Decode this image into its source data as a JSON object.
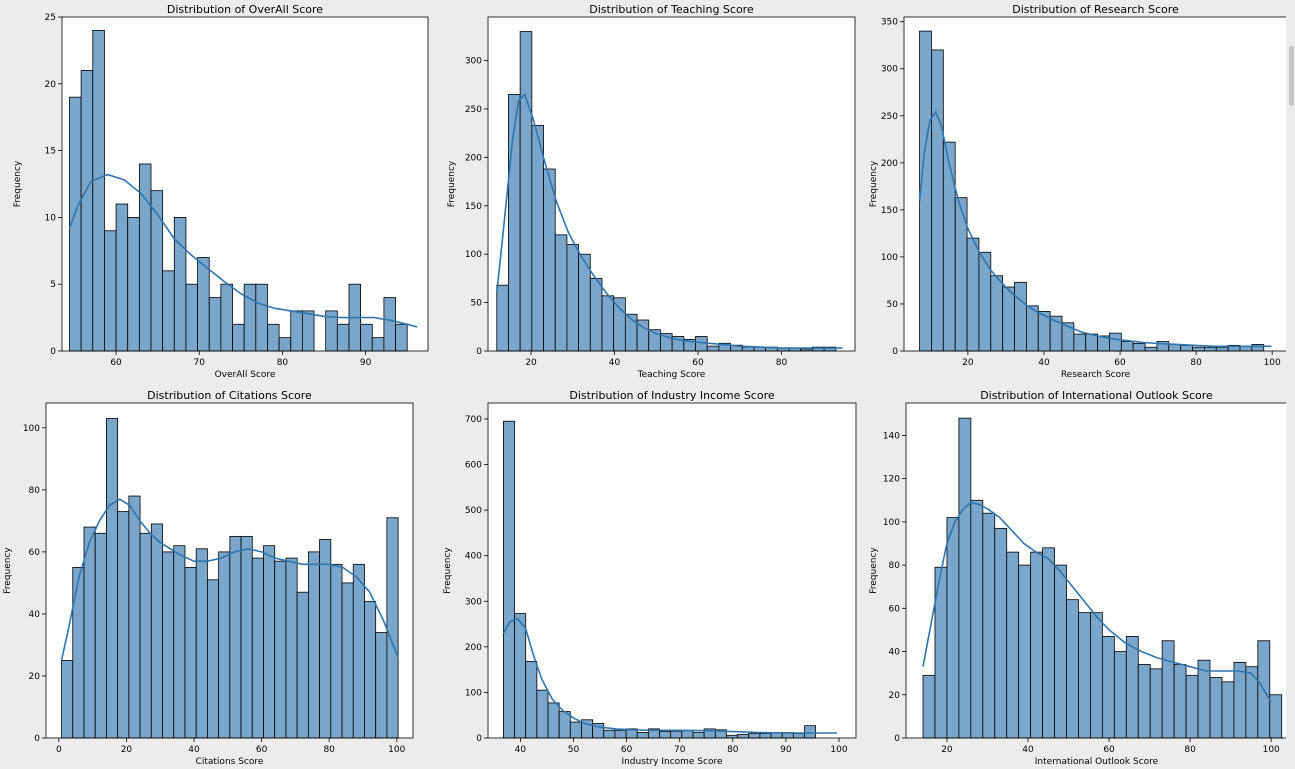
{
  "theme": {
    "bar_fill": "#7aa6cb",
    "bar_edge": "#000000",
    "kde": "#2f75ae",
    "frame": "#000000"
  },
  "chart_data": [
    {
      "type": "bar",
      "title": "Distribution of OverAll Score",
      "xlabel": "OverAll Score",
      "ylabel": "Frequency",
      "xlim": [
        53.5,
        97.5
      ],
      "ylim": [
        0,
        25
      ],
      "xticks": [
        60,
        70,
        80,
        90
      ],
      "yticks": [
        0,
        5,
        10,
        15,
        20,
        25
      ],
      "bins": {
        "start": 54.4,
        "width": 1.4
      },
      "values": [
        19,
        21,
        24,
        9,
        11,
        10,
        14,
        12,
        6,
        10,
        5,
        7,
        4,
        5,
        2,
        5,
        5,
        2,
        1,
        3,
        3,
        0,
        3,
        2,
        5,
        2,
        1,
        4,
        2
      ],
      "kde": [
        [
          54.4,
          9.2
        ],
        [
          55.5,
          11
        ],
        [
          57,
          12.7
        ],
        [
          59,
          13.2
        ],
        [
          61,
          12.8
        ],
        [
          63,
          11.8
        ],
        [
          65,
          10.2
        ],
        [
          67,
          8.4
        ],
        [
          69,
          7.2
        ],
        [
          71,
          6.2
        ],
        [
          73,
          5.2
        ],
        [
          75,
          4.3
        ],
        [
          77,
          3.6
        ],
        [
          79,
          3.2
        ],
        [
          81,
          3.0
        ],
        [
          83,
          2.8
        ],
        [
          85,
          2.6
        ],
        [
          87,
          2.5
        ],
        [
          89,
          2.5
        ],
        [
          91,
          2.5
        ],
        [
          93,
          2.3
        ],
        [
          95,
          2.0
        ],
        [
          96.2,
          1.8
        ]
      ]
    },
    {
      "type": "bar",
      "title": "Distribution of Teaching Score",
      "xlabel": "Teaching Score",
      "ylabel": "Frequency",
      "xlim": [
        9.7,
        97.6
      ],
      "ylim": [
        0,
        345
      ],
      "xticks": [
        20,
        40,
        60,
        80
      ],
      "yticks": [
        0,
        50,
        100,
        150,
        200,
        250,
        300
      ],
      "bins": {
        "start": 11.8,
        "width": 2.8
      },
      "values": [
        68,
        265,
        330,
        233,
        188,
        120,
        110,
        100,
        75,
        57,
        55,
        38,
        32,
        22,
        18,
        15,
        12,
        15,
        5,
        8,
        6,
        4,
        4,
        4,
        3,
        3,
        2,
        4,
        4
      ],
      "kde": [
        [
          11.8,
          60
        ],
        [
          13.5,
          130
        ],
        [
          15.5,
          215
        ],
        [
          17,
          258
        ],
        [
          18.5,
          265
        ],
        [
          20.5,
          240
        ],
        [
          23,
          200
        ],
        [
          26,
          155
        ],
        [
          29,
          122
        ],
        [
          32,
          98
        ],
        [
          35,
          78
        ],
        [
          38,
          60
        ],
        [
          41,
          45
        ],
        [
          44,
          33
        ],
        [
          47,
          24
        ],
        [
          50,
          18
        ],
        [
          53,
          14
        ],
        [
          56,
          11
        ],
        [
          60,
          9
        ],
        [
          65,
          7
        ],
        [
          70,
          5
        ],
        [
          75,
          4
        ],
        [
          80,
          3
        ],
        [
          85,
          3
        ],
        [
          90,
          3
        ],
        [
          94.6,
          3
        ]
      ]
    },
    {
      "type": "bar",
      "title": "Distribution of Research Score",
      "xlabel": "Research Score",
      "ylabel": "Frequency",
      "xlim": [
        3.2,
        103.9
      ],
      "ylim": [
        0,
        355
      ],
      "xticks": [
        20,
        40,
        60,
        80,
        100
      ],
      "yticks": [
        0,
        50,
        100,
        150,
        200,
        250,
        300,
        350
      ],
      "bins": {
        "start": 7.3,
        "width": 3.12
      },
      "values": [
        340,
        320,
        222,
        163,
        120,
        105,
        80,
        68,
        73,
        48,
        42,
        37,
        30,
        18,
        18,
        16,
        19,
        10,
        8,
        4,
        10,
        7,
        6,
        4,
        4,
        4,
        6,
        5,
        7
      ],
      "kde": [
        [
          7.3,
          160
        ],
        [
          8.5,
          210
        ],
        [
          10,
          245
        ],
        [
          11.5,
          254
        ],
        [
          13,
          240
        ],
        [
          15,
          200
        ],
        [
          17.5,
          160
        ],
        [
          20,
          130
        ],
        [
          23,
          105
        ],
        [
          26,
          86
        ],
        [
          29,
          72
        ],
        [
          32,
          60
        ],
        [
          35,
          50
        ],
        [
          38,
          42
        ],
        [
          41,
          36
        ],
        [
          44,
          30
        ],
        [
          47,
          25
        ],
        [
          50,
          20
        ],
        [
          54,
          16
        ],
        [
          58,
          13
        ],
        [
          62,
          11
        ],
        [
          66,
          9
        ],
        [
          70,
          8
        ],
        [
          75,
          7
        ],
        [
          80,
          6
        ],
        [
          85,
          5
        ],
        [
          90,
          5
        ],
        [
          95,
          5
        ],
        [
          99.8,
          5
        ]
      ]
    },
    {
      "type": "bar",
      "title": "Distribution of Citations Score",
      "xlabel": "Citations Score",
      "ylabel": "Frequency",
      "xlim": [
        -3.8,
        104.8
      ],
      "ylim": [
        0,
        108
      ],
      "xticks": [
        0,
        20,
        40,
        60,
        80,
        100
      ],
      "yticks": [
        0,
        20,
        40,
        60,
        80,
        100
      ],
      "bins": {
        "start": 0.8,
        "width": 3.32
      },
      "values": [
        25,
        55,
        68,
        66,
        103,
        73,
        78,
        66,
        69,
        60,
        62,
        55,
        61,
        51,
        60,
        65,
        65,
        58,
        62,
        57,
        58,
        47,
        60,
        64,
        56,
        50,
        56,
        44,
        34,
        71
      ],
      "kde": [
        [
          0.8,
          25
        ],
        [
          3,
          36
        ],
        [
          6,
          52
        ],
        [
          9,
          63
        ],
        [
          12,
          70
        ],
        [
          15,
          75
        ],
        [
          18,
          77
        ],
        [
          21,
          75
        ],
        [
          24,
          70
        ],
        [
          27,
          66
        ],
        [
          30,
          63
        ],
        [
          33,
          61
        ],
        [
          36,
          59
        ],
        [
          40,
          57
        ],
        [
          44,
          57
        ],
        [
          48,
          58
        ],
        [
          52,
          60
        ],
        [
          56,
          61
        ],
        [
          60,
          60
        ],
        [
          64,
          58
        ],
        [
          68,
          57
        ],
        [
          72,
          56
        ],
        [
          76,
          56
        ],
        [
          80,
          56
        ],
        [
          84,
          55
        ],
        [
          88,
          52
        ],
        [
          92,
          47
        ],
        [
          96,
          38
        ],
        [
          100.4,
          26
        ]
      ]
    },
    {
      "type": "bar",
      "title": "Distribution of Industry Income Score",
      "xlabel": "Industry Income Score",
      "ylabel": "Frequency",
      "xlim": [
        33.9,
        103.2
      ],
      "ylim": [
        0,
        735
      ],
      "xticks": [
        40,
        50,
        60,
        70,
        80,
        90,
        100
      ],
      "yticks": [
        0,
        100,
        200,
        300,
        400,
        500,
        600,
        700
      ],
      "bins": {
        "start": 36.8,
        "width": 2.1
      },
      "values": [
        695,
        273,
        168,
        105,
        77,
        58,
        35,
        40,
        32,
        17,
        17,
        20,
        12,
        20,
        14,
        15,
        16,
        12,
        20,
        18,
        6,
        8,
        10,
        10,
        12,
        12,
        10,
        27
      ],
      "kde": [
        [
          36.8,
          230
        ],
        [
          38,
          255
        ],
        [
          39.5,
          262
        ],
        [
          41,
          240
        ],
        [
          42.5,
          180
        ],
        [
          44,
          130
        ],
        [
          46,
          85
        ],
        [
          48,
          60
        ],
        [
          50,
          44
        ],
        [
          52,
          32
        ],
        [
          55,
          24
        ],
        [
          58,
          20
        ],
        [
          61,
          18
        ],
        [
          65,
          17
        ],
        [
          70,
          17
        ],
        [
          75,
          16
        ],
        [
          80,
          14
        ],
        [
          85,
          12
        ],
        [
          90,
          11
        ],
        [
          95,
          11
        ],
        [
          99.6,
          11
        ]
      ]
    },
    {
      "type": "bar",
      "title": "Distribution of International Outlook Score",
      "xlabel": "International Outlook Score",
      "ylabel": "Frequency",
      "xlim": [
        9.9,
        103.9
      ],
      "ylim": [
        0,
        155
      ],
      "xticks": [
        20,
        40,
        60,
        80,
        100
      ],
      "yticks": [
        0,
        20,
        40,
        60,
        80,
        100,
        120,
        140
      ],
      "bins": {
        "start": 14.1,
        "width": 2.95
      },
      "values": [
        29,
        79,
        102,
        148,
        110,
        104,
        97,
        86,
        80,
        86,
        88,
        80,
        64,
        58,
        58,
        47,
        40,
        47,
        34,
        32,
        45,
        34,
        29,
        36,
        28,
        26,
        35,
        33,
        45,
        20
      ],
      "kde": [
        [
          14.1,
          33
        ],
        [
          16,
          52
        ],
        [
          18,
          72
        ],
        [
          20,
          90
        ],
        [
          22,
          100
        ],
        [
          24,
          106
        ],
        [
          26,
          109
        ],
        [
          28,
          108
        ],
        [
          30,
          106
        ],
        [
          33,
          102
        ],
        [
          36,
          96
        ],
        [
          39,
          90
        ],
        [
          42,
          86
        ],
        [
          45,
          83
        ],
        [
          48,
          77
        ],
        [
          51,
          70
        ],
        [
          54,
          63
        ],
        [
          57,
          56
        ],
        [
          60,
          50
        ],
        [
          64,
          44
        ],
        [
          68,
          40
        ],
        [
          72,
          37
        ],
        [
          76,
          35
        ],
        [
          80,
          33
        ],
        [
          84,
          31
        ],
        [
          88,
          31
        ],
        [
          92,
          31
        ],
        [
          95,
          30
        ],
        [
          97,
          26
        ],
        [
          99.9,
          17
        ]
      ]
    }
  ]
}
